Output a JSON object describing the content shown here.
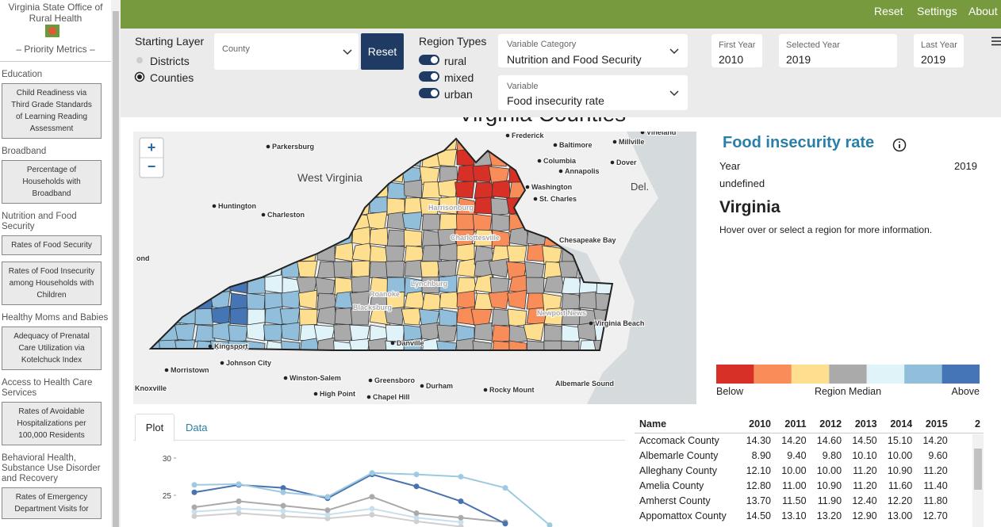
{
  "sidebar": {
    "title": "Virginia State Office of Rural Health",
    "subtitle": "– Priority Metrics –",
    "sections": [
      {
        "heading": "Education",
        "items": [
          "Child Readiness via Third Grade Standards of Learning Reading Assessment"
        ]
      },
      {
        "heading": "Broadband",
        "items": [
          "Percentage of Households with Broadband"
        ]
      },
      {
        "heading": "Nutrition and Food Security",
        "items": [
          "Rates of Food Security",
          "Rates of Food Insecurity among Households with Children"
        ]
      },
      {
        "heading": "Healthy Moms and Babies",
        "items": [
          "Adequacy of Prenatal Care Utilization via Kotelchuck Index"
        ]
      },
      {
        "heading": "Access to Health Care Services",
        "items": [
          "Rates of Avoidable Hospitalizations per 100,000 Residents"
        ]
      },
      {
        "heading": "Behavioral Health, Substance Use Disorder and Recovery",
        "items": [
          "Rates of Emergency Department Visits for"
        ]
      }
    ]
  },
  "nav": [
    "Reset",
    "Settings",
    "About"
  ],
  "controls": {
    "starting_layer": {
      "label": "Starting Layer",
      "options": [
        "Districts",
        "Counties"
      ]
    },
    "county_placeholder": "County",
    "reset": "Reset",
    "region_types": {
      "label": "Region Types",
      "options": [
        "rural",
        "mixed",
        "urban"
      ]
    },
    "variable_category": {
      "label": "Variable Category",
      "value": "Nutrition and Food Security"
    },
    "variable": {
      "label": "Variable",
      "value": "Food insecurity rate"
    },
    "first_year": {
      "label": "First Year",
      "value": "2010"
    },
    "selected_year": {
      "label": "Selected Year",
      "value": "2019"
    },
    "last_year": {
      "label": "Last Year",
      "value": "2019"
    }
  },
  "map": {
    "title": "Virginia Counties",
    "zoom_in": "+",
    "zoom_out": "−",
    "labels": [
      "Frederick",
      "Baltimore",
      "Millville",
      "Vineland",
      "Parkersburg",
      "Columbia",
      "Annapolis",
      "Dover",
      "West Virginia",
      "Washington",
      "Del.",
      "St. Charles",
      "Huntington",
      "Charleston",
      "Chesapeake Bay",
      "ond",
      "Virginia Beach",
      "Kingsport",
      "Danville",
      "Morristown",
      "Johnson City",
      "Winston-Salem",
      "Greensboro",
      "Durham",
      "Knoxville",
      "High Point",
      "Chapel Hill",
      "Rocky Mount",
      "Albemarle Sound",
      "Roanoke",
      "Lynchburg",
      "Charlottesville",
      "Harrisonburg",
      "Blacksburg",
      "Newport News"
    ]
  },
  "info": {
    "title": "Food insecurity rate",
    "year_label": "Year",
    "year": "2019",
    "note": "undefined",
    "region": "Virginia",
    "hint": "Hover over or select a region for more information."
  },
  "legend": {
    "colors": [
      "#d73027",
      "#f88d59",
      "#fedf8f",
      "#aaaaaa",
      "#e0f3f8",
      "#91bfdb",
      "#4575b4"
    ],
    "labels": [
      "Below",
      "Region Median",
      "Above"
    ]
  },
  "tabs": [
    "Plot",
    "Data"
  ],
  "chart_data": {
    "type": "line",
    "ylim": [
      20,
      31
    ],
    "yticks": [
      25,
      30
    ],
    "series": [
      {
        "color": "#9ecae1",
        "values": [
          26.4,
          26.5,
          25.4,
          24.8,
          28.0,
          27.8,
          27.5,
          26.0,
          21.0
        ]
      },
      {
        "color": "#4a72b0",
        "values": [
          25.4,
          26.4,
          26.0,
          24.6,
          27.8,
          26.2,
          24.2,
          21.2
        ]
      },
      {
        "color": "#aaaaaa",
        "values": [
          23.4,
          24.2,
          23.6,
          23.0,
          24.8,
          22.6,
          22.0,
          21.4
        ]
      },
      {
        "color": "#c8e0ee",
        "values": [
          22.8,
          23.2,
          22.9,
          22.4,
          23.2,
          22.0,
          21.4
        ]
      },
      {
        "color": "#cfcfcf",
        "values": [
          22.2,
          22.6,
          22.2,
          21.9,
          22.4,
          21.5,
          20.8
        ]
      }
    ]
  },
  "table": {
    "header": [
      "Name",
      "2010",
      "2011",
      "2012",
      "2013",
      "2014",
      "2015",
      "2"
    ],
    "rows": [
      [
        "Accomack County",
        "14.30",
        "14.20",
        "14.60",
        "14.50",
        "15.10",
        "14.20"
      ],
      [
        "Albemarle County",
        "8.90",
        "9.40",
        "9.80",
        "10.10",
        "10.00",
        "9.60"
      ],
      [
        "Alleghany County",
        "12.10",
        "10.00",
        "10.00",
        "11.20",
        "10.90",
        "11.20"
      ],
      [
        "Amelia County",
        "12.80",
        "11.00",
        "10.90",
        "11.20",
        "11.60",
        "11.40"
      ],
      [
        "Amherst County",
        "13.70",
        "11.50",
        "11.90",
        "12.40",
        "12.20",
        "11.80"
      ],
      [
        "Appomattox County",
        "14.50",
        "13.10",
        "13.20",
        "12.90",
        "13.00",
        "12.70"
      ]
    ]
  }
}
